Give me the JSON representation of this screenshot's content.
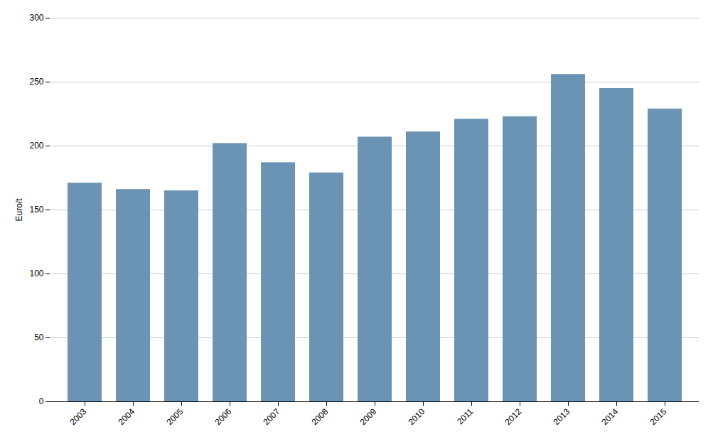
{
  "chart_data": {
    "type": "bar",
    "categories": [
      "2003",
      "2004",
      "2005",
      "2006",
      "2007",
      "2008",
      "2009",
      "2010",
      "2011",
      "2012",
      "2013",
      "2014",
      "2015"
    ],
    "values": [
      171,
      166,
      165,
      202,
      187,
      179,
      207,
      211,
      221,
      223,
      256,
      245,
      229
    ],
    "color": "#6b93b4",
    "ylabel": "Euro/t",
    "ylim": [
      0,
      300
    ],
    "yticks": [
      0,
      50,
      100,
      150,
      200,
      250,
      300
    ],
    "grid": true
  }
}
